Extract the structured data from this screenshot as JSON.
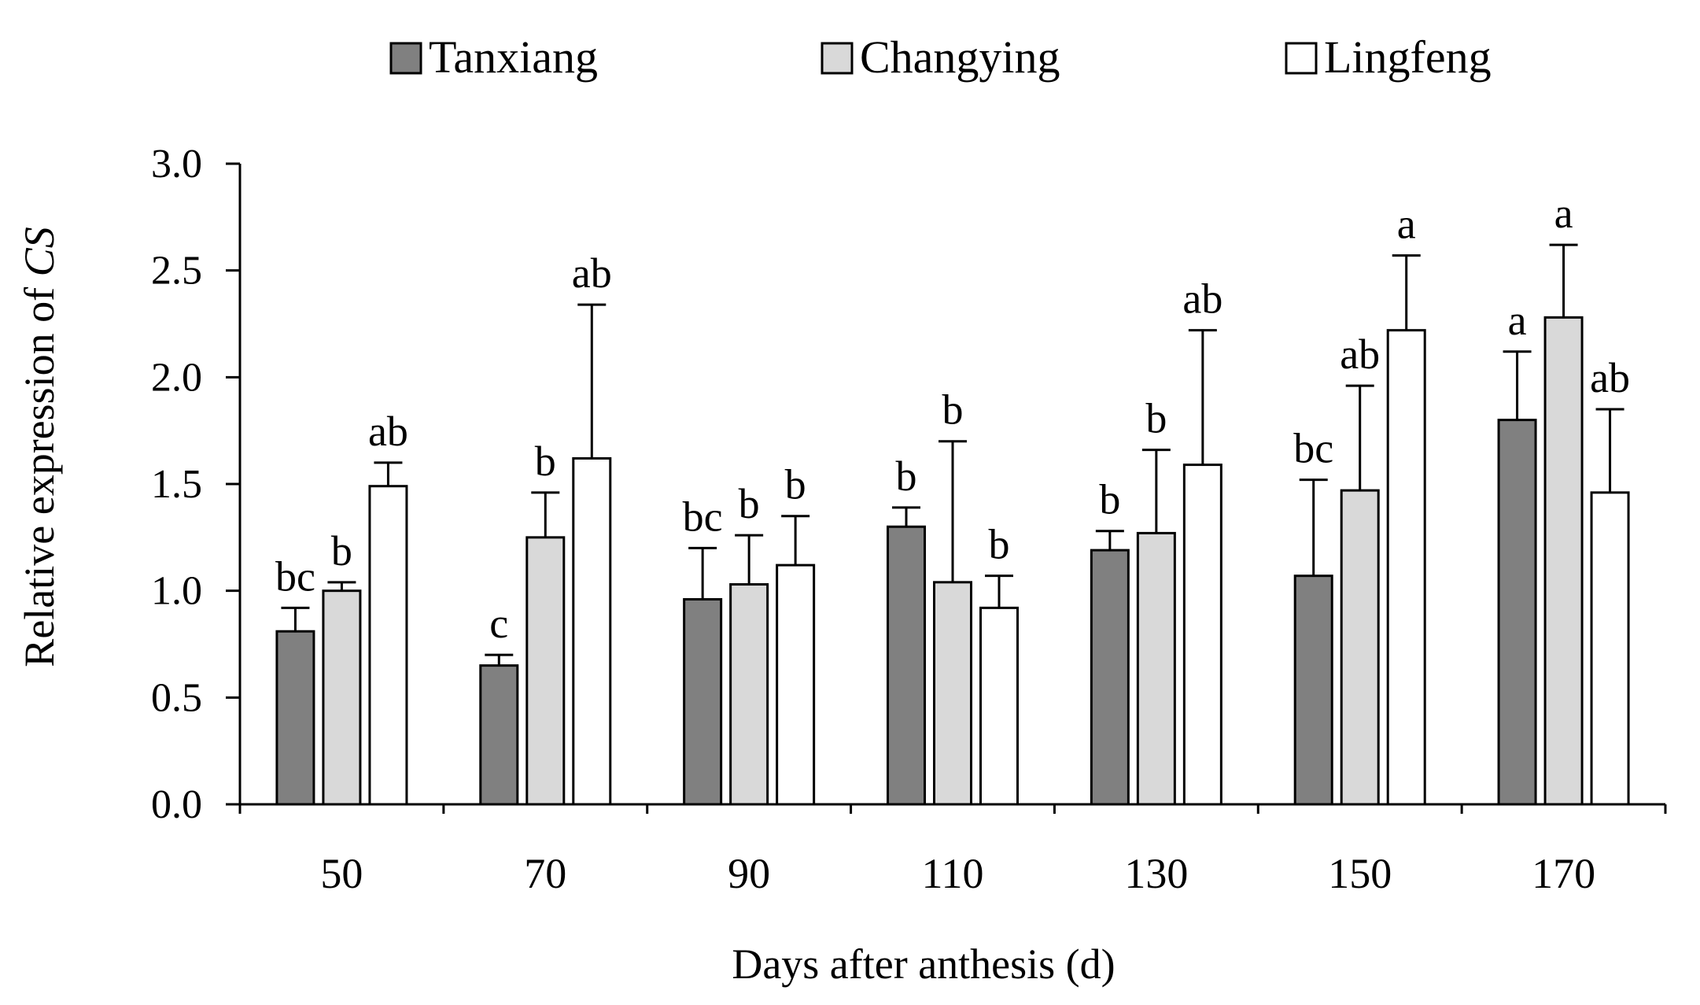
{
  "chart_data": {
    "type": "bar",
    "title": "",
    "xlabel": "Days after anthesis (d)",
    "ylabel": {
      "prefix": "Relative expression of ",
      "gene": "CS"
    },
    "ylim": [
      0,
      3.0
    ],
    "yticks": [
      "0.0",
      "0.5",
      "1.0",
      "1.5",
      "2.0",
      "2.5",
      "3.0"
    ],
    "grid": false,
    "legend_position": "top",
    "categories": [
      "50",
      "70",
      "90",
      "110",
      "130",
      "150",
      "170"
    ],
    "series": [
      {
        "name": "Tanxiang",
        "color": "#808080",
        "values": [
          0.81,
          0.65,
          0.96,
          1.3,
          1.19,
          1.07,
          1.8
        ],
        "errors": [
          0.11,
          0.05,
          0.24,
          0.09,
          0.09,
          0.45,
          0.32
        ],
        "letters": [
          "bc",
          "c",
          "bc",
          "b",
          "b",
          "bc",
          "a"
        ]
      },
      {
        "name": "Changying",
        "color": "#d9d9d9",
        "values": [
          1.0,
          1.25,
          1.03,
          1.04,
          1.27,
          1.47,
          2.28
        ],
        "errors": [
          0.04,
          0.21,
          0.23,
          0.66,
          0.39,
          0.49,
          0.34
        ],
        "letters": [
          "b",
          "b",
          "b",
          "b",
          "b",
          "ab",
          "a"
        ]
      },
      {
        "name": "Lingfeng",
        "color": "#ffffff",
        "values": [
          1.49,
          1.62,
          1.12,
          0.92,
          1.59,
          2.22,
          1.46
        ],
        "errors": [
          0.11,
          0.72,
          0.23,
          0.15,
          0.63,
          0.35,
          0.39
        ],
        "letters": [
          "ab",
          "ab",
          "b",
          "b",
          "ab",
          "a",
          "ab"
        ]
      }
    ]
  }
}
